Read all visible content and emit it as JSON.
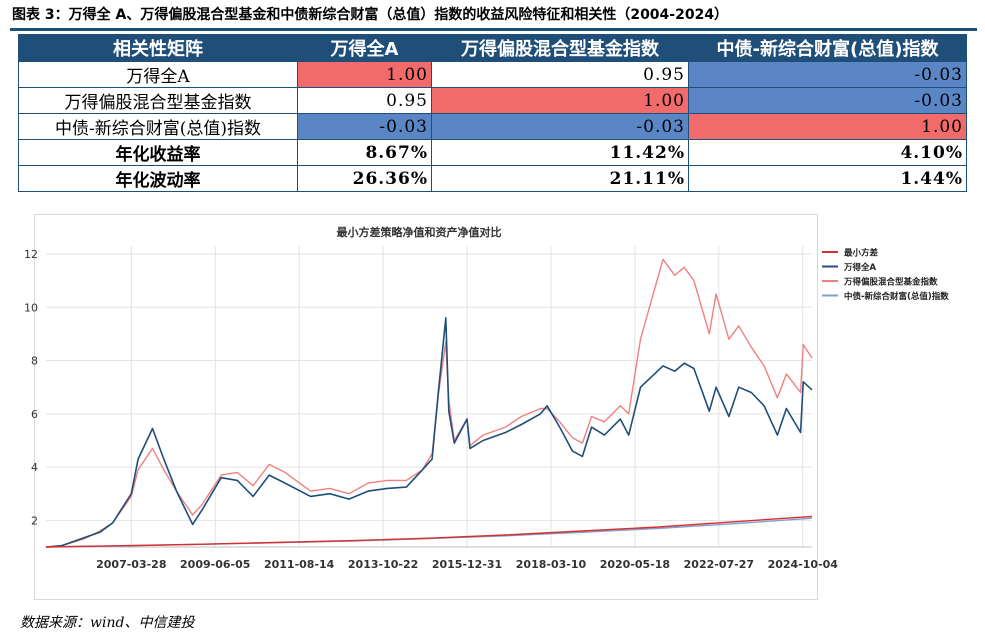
{
  "caption": "图表 3：万得全 A、万得偏股混合型基金和中债新综合财富（总值）指数的收益风险特征和相关性（2004-2024）",
  "table": {
    "headers": [
      "相关性矩阵",
      "万得全A",
      "万得偏股混合型基金指数",
      "中债-新综合财富(总值)指数"
    ],
    "rows": [
      {
        "label": "万得全A",
        "cells": [
          "1.00",
          "0.95",
          "-0.03"
        ],
        "colors": [
          "red",
          "white",
          "blue"
        ]
      },
      {
        "label": "万得偏股混合型基金指数",
        "cells": [
          "0.95",
          "1.00",
          "-0.03"
        ],
        "colors": [
          "white",
          "red",
          "blue"
        ]
      },
      {
        "label": "中债-新综合财富(总值)指数",
        "cells": [
          "-0.03",
          "-0.03",
          "1.00"
        ],
        "colors": [
          "blue",
          "blue",
          "red"
        ]
      },
      {
        "label": "年化收益率",
        "cells": [
          "8.67%",
          "11.42%",
          "4.10%"
        ],
        "colors": [
          "white",
          "white",
          "white"
        ]
      },
      {
        "label": "年化波动率",
        "cells": [
          "26.36%",
          "21.11%",
          "1.44%"
        ],
        "colors": [
          "white",
          "white",
          "white"
        ]
      }
    ],
    "colors": {
      "red": "#f26b6b",
      "blue": "#5b86c6",
      "header": "#1f4e79"
    }
  },
  "chart_data": {
    "type": "line",
    "title": "最小方差策略净值和资产净值对比",
    "xlabel": "",
    "ylabel": "",
    "ylim": [
      1,
      12.3
    ],
    "yticks": [
      2,
      4,
      6,
      8,
      10,
      12
    ],
    "xticks": [
      "2007-03-28",
      "2009-06-05",
      "2011-08-14",
      "2013-10-22",
      "2015-12-31",
      "2018-03-10",
      "2020-05-18",
      "2022-07-27",
      "2024-10-04"
    ],
    "xrange": [
      "2005-01-04",
      "2024-12-31"
    ],
    "grid": true,
    "legend_position": "top-right",
    "series": [
      {
        "name": "最小方差",
        "color": "#d62f2f",
        "x": [
          "2005-01-04",
          "2007-01-01",
          "2009-01-01",
          "2011-01-01",
          "2013-01-01",
          "2015-01-01",
          "2017-01-01",
          "2019-01-01",
          "2021-01-01",
          "2023-01-01",
          "2024-12-31"
        ],
        "y": [
          1.0,
          1.05,
          1.1,
          1.17,
          1.24,
          1.33,
          1.45,
          1.6,
          1.75,
          1.95,
          2.15
        ]
      },
      {
        "name": "万得全A",
        "color": "#1f4e79",
        "x": [
          "2005-01-04",
          "2005-06-01",
          "2006-01-01",
          "2006-06-01",
          "2006-10-01",
          "2007-03-28",
          "2007-06-01",
          "2007-10-16",
          "2008-02-01",
          "2008-06-01",
          "2008-11-01",
          "2009-02-01",
          "2009-08-01",
          "2010-01-01",
          "2010-06-01",
          "2010-11-01",
          "2011-04-01",
          "2011-12-01",
          "2012-06-01",
          "2012-12-01",
          "2013-06-01",
          "2013-12-01",
          "2014-06-01",
          "2014-11-01",
          "2015-02-01",
          "2015-04-01",
          "2015-06-12",
          "2015-07-10",
          "2015-09-01",
          "2015-12-31",
          "2016-01-28",
          "2016-06-01",
          "2017-01-01",
          "2017-06-01",
          "2017-12-01",
          "2018-02-01",
          "2018-06-01",
          "2018-10-01",
          "2019-01-04",
          "2019-04-01",
          "2019-08-01",
          "2020-01-01",
          "2020-03-20",
          "2020-07-10",
          "2021-02-10",
          "2021-06-01",
          "2021-09-01",
          "2021-12-01",
          "2022-04-27",
          "2022-07-01",
          "2022-10-31",
          "2023-02-01",
          "2023-06-01",
          "2023-10-01",
          "2024-02-05",
          "2024-05-01",
          "2024-09-13",
          "2024-10-08",
          "2024-12-31"
        ],
        "y": [
          1.0,
          1.05,
          1.35,
          1.55,
          1.9,
          3.0,
          4.3,
          5.45,
          4.3,
          3.1,
          1.85,
          2.4,
          3.6,
          3.5,
          2.9,
          3.7,
          3.4,
          2.9,
          3.0,
          2.8,
          3.1,
          3.2,
          3.25,
          3.9,
          4.3,
          6.8,
          9.6,
          6.1,
          4.9,
          5.8,
          4.7,
          5.0,
          5.3,
          5.6,
          6.0,
          6.3,
          5.5,
          4.6,
          4.4,
          5.5,
          5.2,
          5.8,
          5.2,
          7.0,
          7.8,
          7.6,
          7.9,
          7.7,
          6.1,
          7.0,
          5.9,
          7.0,
          6.8,
          6.3,
          5.2,
          6.2,
          5.3,
          7.2,
          6.9
        ]
      },
      {
        "name": "万得偏股混合型基金指数",
        "color": "#f08080",
        "x": [
          "2005-01-04",
          "2005-06-01",
          "2006-01-01",
          "2006-06-01",
          "2006-10-01",
          "2007-03-28",
          "2007-06-01",
          "2007-10-16",
          "2008-02-01",
          "2008-06-01",
          "2008-11-01",
          "2009-02-01",
          "2009-08-01",
          "2010-01-01",
          "2010-06-01",
          "2010-11-01",
          "2011-04-01",
          "2011-12-01",
          "2012-06-01",
          "2012-12-01",
          "2013-06-01",
          "2013-12-01",
          "2014-06-01",
          "2014-11-01",
          "2015-02-01",
          "2015-04-01",
          "2015-06-12",
          "2015-07-10",
          "2015-09-01",
          "2015-12-31",
          "2016-01-28",
          "2016-06-01",
          "2017-01-01",
          "2017-06-01",
          "2017-12-01",
          "2018-02-01",
          "2018-06-01",
          "2018-10-01",
          "2019-01-04",
          "2019-04-01",
          "2019-08-01",
          "2020-01-01",
          "2020-03-20",
          "2020-07-10",
          "2021-02-10",
          "2021-06-01",
          "2021-09-01",
          "2021-12-01",
          "2022-04-27",
          "2022-07-01",
          "2022-10-31",
          "2023-02-01",
          "2023-06-01",
          "2023-10-01",
          "2024-02-05",
          "2024-05-01",
          "2024-09-13",
          "2024-10-08",
          "2024-12-31"
        ],
        "y": [
          1.0,
          1.05,
          1.3,
          1.6,
          1.9,
          2.9,
          3.9,
          4.7,
          3.9,
          3.1,
          2.2,
          2.6,
          3.7,
          3.8,
          3.3,
          4.1,
          3.8,
          3.1,
          3.2,
          3.0,
          3.4,
          3.5,
          3.5,
          3.9,
          4.5,
          6.7,
          8.7,
          6.5,
          5.0,
          5.8,
          4.8,
          5.2,
          5.5,
          5.9,
          6.2,
          6.2,
          5.7,
          5.1,
          4.9,
          5.9,
          5.7,
          6.3,
          6.0,
          8.8,
          11.8,
          11.2,
          11.5,
          11.0,
          9.0,
          10.5,
          8.8,
          9.3,
          8.5,
          7.8,
          6.6,
          7.5,
          6.8,
          8.6,
          8.1
        ]
      },
      {
        "name": "中债-新综合财富(总值)指数",
        "color": "#7f9fcf",
        "x": [
          "2005-01-04",
          "2007-01-01",
          "2009-01-01",
          "2011-01-01",
          "2013-01-01",
          "2015-01-01",
          "2017-01-01",
          "2019-01-01",
          "2021-01-01",
          "2023-01-01",
          "2024-12-31"
        ],
        "y": [
          1.0,
          1.04,
          1.1,
          1.16,
          1.22,
          1.32,
          1.42,
          1.55,
          1.7,
          1.88,
          2.08
        ]
      }
    ]
  },
  "source": "数据来源：wind、中信建投"
}
